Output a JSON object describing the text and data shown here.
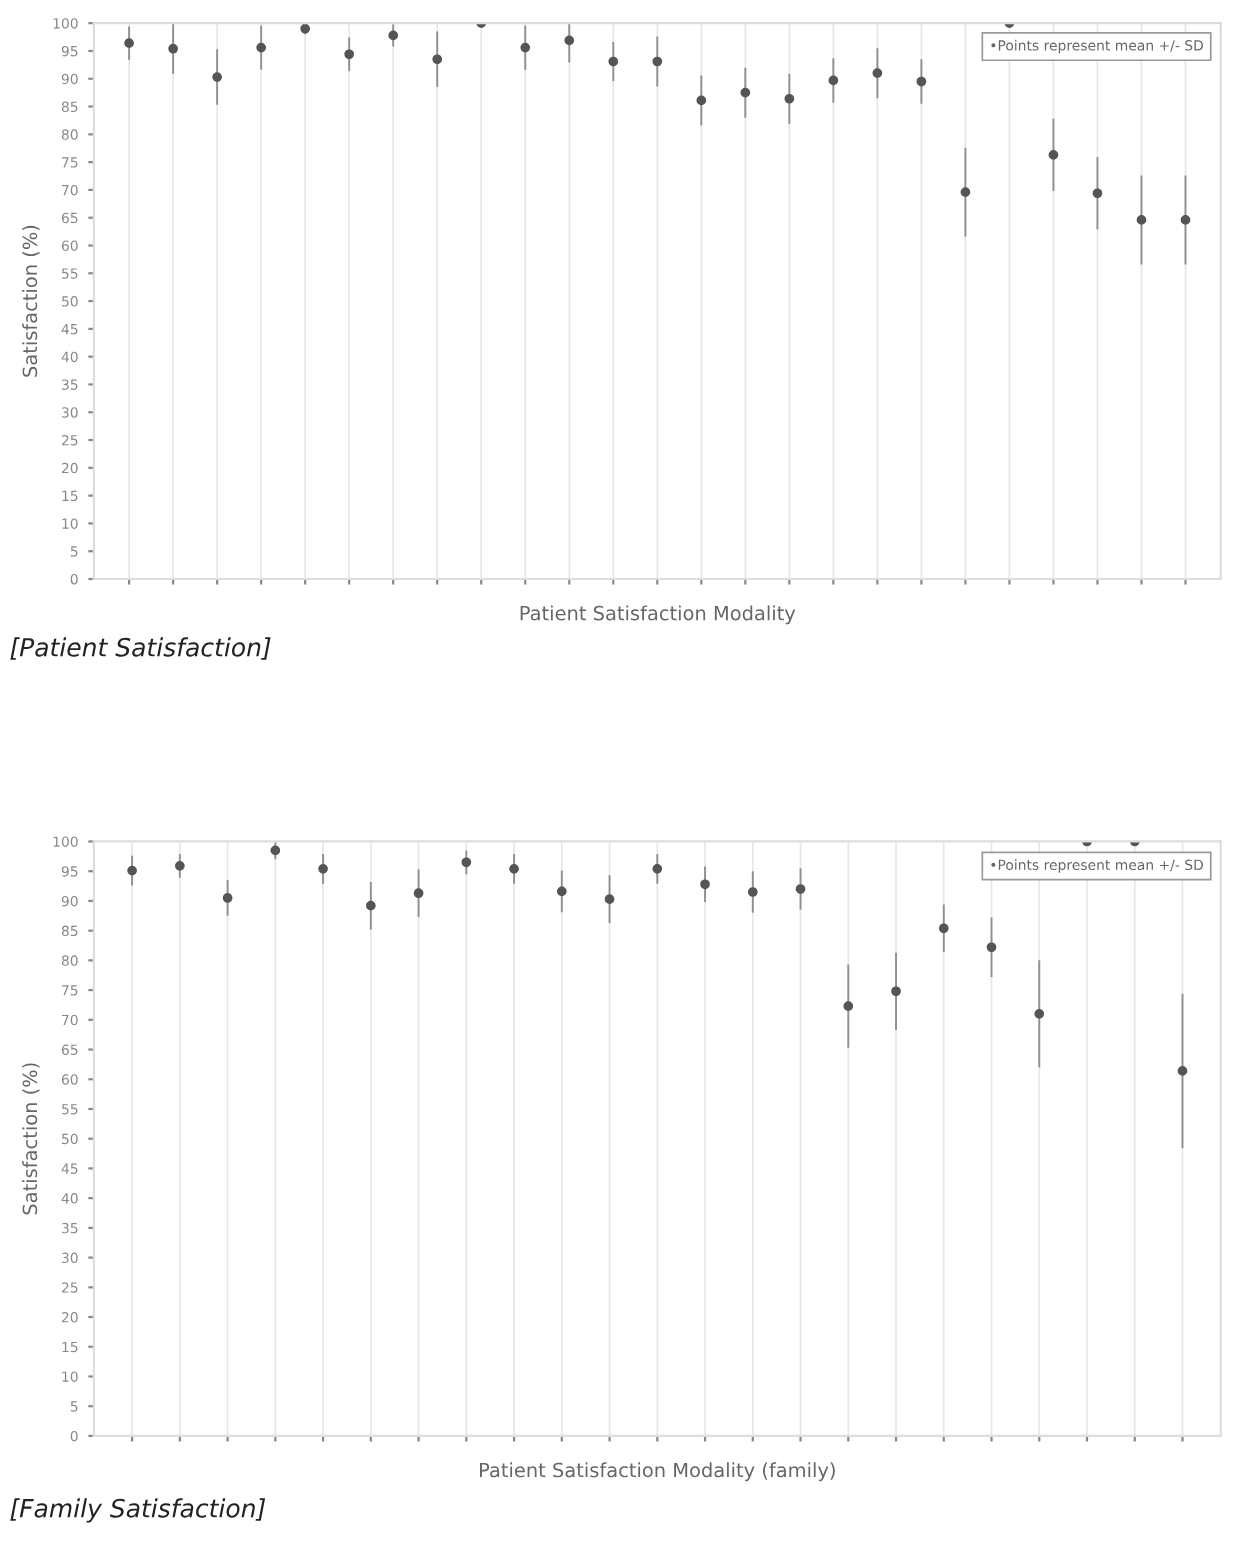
{
  "chart_data": [
    {
      "type": "scatter",
      "xlabel": "Patient Satisfaction Modality",
      "ylabel": "Satisfaction (%)",
      "categories": [
        null,
        null,
        null,
        null,
        null,
        null,
        null,
        null,
        null,
        null,
        null,
        null,
        null,
        null,
        null,
        null,
        null,
        null,
        null,
        null,
        null,
        null,
        null,
        null,
        null
      ],
      "series": [
        {
          "color": "#555555",
          "values": [
            96.4,
            95.4,
            90.3,
            95.6,
            99,
            94.4,
            97.8,
            93.5,
            100,
            95.6,
            96.9,
            93.1,
            93.1,
            86.1,
            87.5,
            86.4,
            89.7,
            91,
            89.5,
            69.6,
            100,
            76.3,
            69.4,
            64.6,
            64.6
          ],
          "errors": [
            3,
            4.5,
            5,
            4,
            1,
            3,
            2,
            5,
            null,
            4,
            4,
            3.5,
            4.5,
            4.5,
            4.5,
            4.5,
            4,
            4.5,
            4,
            8,
            null,
            6.5,
            6.5,
            8,
            8
          ]
        }
      ],
      "ylim": [
        0,
        100
      ],
      "yticks": [
        0,
        5,
        10,
        15,
        20,
        25,
        30,
        35,
        40,
        45,
        50,
        55,
        60,
        65,
        70,
        75,
        80,
        85,
        90,
        95,
        100
      ],
      "grid": "x",
      "marker": "circle",
      "annotations": [
        "•Points represent mean +/- SD",
        "[Patient Satisfaction]"
      ]
    },
    {
      "type": "scatter",
      "xlabel": "Patient Satisfaction Modality (family)",
      "ylabel": "Satisfaction (%)",
      "categories": [
        null,
        null,
        null,
        null,
        null,
        null,
        null,
        null,
        null,
        null,
        null,
        null,
        null,
        null,
        null,
        null,
        null,
        null,
        null,
        null,
        null,
        null,
        null
      ],
      "series": [
        {
          "color": "#555555",
          "values": [
            95.1,
            95.9,
            90.5,
            98.5,
            95.4,
            89.2,
            91.3,
            96.5,
            95.4,
            91.6,
            90.3,
            95.4,
            92.8,
            91.5,
            92,
            72.3,
            74.8,
            85.4,
            82.2,
            71,
            100,
            100,
            61.4
          ],
          "errors": [
            2.5,
            2,
            3,
            1.5,
            2.5,
            4,
            4,
            2,
            2.5,
            3.5,
            4,
            2.5,
            3,
            3.5,
            3.5,
            7,
            6.5,
            4,
            5,
            9,
            null,
            null,
            13
          ]
        }
      ],
      "ylim": [
        0,
        100
      ],
      "yticks": [
        0,
        5,
        10,
        15,
        20,
        25,
        30,
        35,
        40,
        45,
        50,
        55,
        60,
        65,
        70,
        75,
        80,
        85,
        90,
        95,
        100
      ],
      "grid": "x",
      "marker": "circle",
      "annotations": [
        "•Points represent mean +/- SD",
        "[Family Satisfaction]"
      ]
    }
  ]
}
